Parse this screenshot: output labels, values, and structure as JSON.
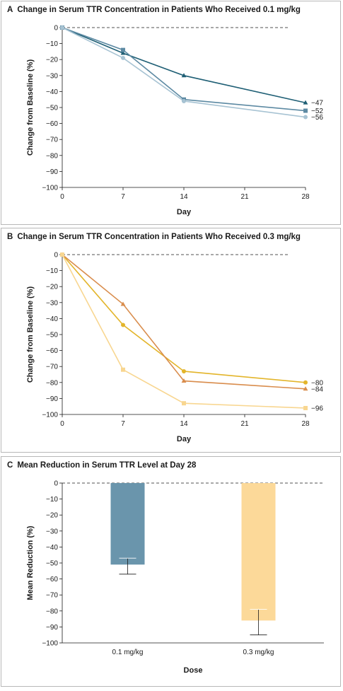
{
  "panel_a": {
    "letter": "A",
    "title": "Change in Serum TTR Concentration in Patients Who Received 0.1 mg/kg"
  },
  "panel_b": {
    "letter": "B",
    "title": "Change in Serum TTR Concentration in Patients Who Received 0.3 mg/kg"
  },
  "panel_c": {
    "letter": "C",
    "title": "Mean Reduction in Serum TTR Level at Day 28"
  },
  "chart_data": [
    {
      "type": "line",
      "xlabel": "Day",
      "ylabel": "Change from Baseline (%)",
      "x": [
        0,
        7,
        14,
        28
      ],
      "xticks": [
        "0",
        "7",
        "14",
        "21",
        "28"
      ],
      "xlim": [
        0,
        28
      ],
      "yticks": [
        "0",
        "−10",
        "−20",
        "−30",
        "−40",
        "−50",
        "−60",
        "−70",
        "−80",
        "−90",
        "−100"
      ],
      "ylim": [
        -100,
        0
      ],
      "series": [
        {
          "values": [
            0,
            -16,
            -30,
            -47
          ],
          "end_label": "−47",
          "color": "#1f5f75",
          "marker": "triangle"
        },
        {
          "values": [
            0,
            -14,
            -45,
            -52
          ],
          "end_label": "−52",
          "color": "#5d8aa3",
          "marker": "square"
        },
        {
          "values": [
            0,
            -19,
            -46,
            -56
          ],
          "end_label": "−56",
          "color": "#a7c3d3",
          "marker": "circle"
        }
      ]
    },
    {
      "type": "line",
      "xlabel": "Day",
      "ylabel": "Change from Baseline (%)",
      "x": [
        0,
        7,
        14,
        28
      ],
      "xticks": [
        "0",
        "7",
        "14",
        "21",
        "28"
      ],
      "xlim": [
        0,
        28
      ],
      "yticks": [
        "0",
        "−10",
        "−20",
        "−30",
        "−40",
        "−50",
        "−60",
        "−70",
        "−80",
        "−90",
        "−100"
      ],
      "ylim": [
        -100,
        0
      ],
      "series": [
        {
          "values": [
            0,
            -44,
            -73,
            -80
          ],
          "end_label": "−80",
          "color": "#e3b52b",
          "marker": "circle"
        },
        {
          "values": [
            0,
            -31,
            -79,
            -84
          ],
          "end_label": "−84",
          "color": "#d98d4d",
          "marker": "triangle"
        },
        {
          "values": [
            0,
            -72,
            -93,
            -96
          ],
          "end_label": "−96",
          "color": "#f8d690",
          "marker": "square"
        }
      ]
    },
    {
      "type": "bar",
      "xlabel": "Dose",
      "ylabel": "Mean Reduction (%)",
      "categories": [
        "0.1 mg/kg",
        "0.3 mg/kg"
      ],
      "values": [
        -51,
        -86
      ],
      "error_bars": [
        [
          -47,
          -57
        ],
        [
          -79,
          -95
        ]
      ],
      "colors": [
        "#6a95ac",
        "#fcd999"
      ],
      "yticks": [
        "0",
        "−10",
        "−20",
        "−30",
        "−40",
        "−50",
        "−60",
        "−70",
        "−80",
        "−90",
        "−100"
      ],
      "ylim": [
        -100,
        0
      ]
    }
  ]
}
